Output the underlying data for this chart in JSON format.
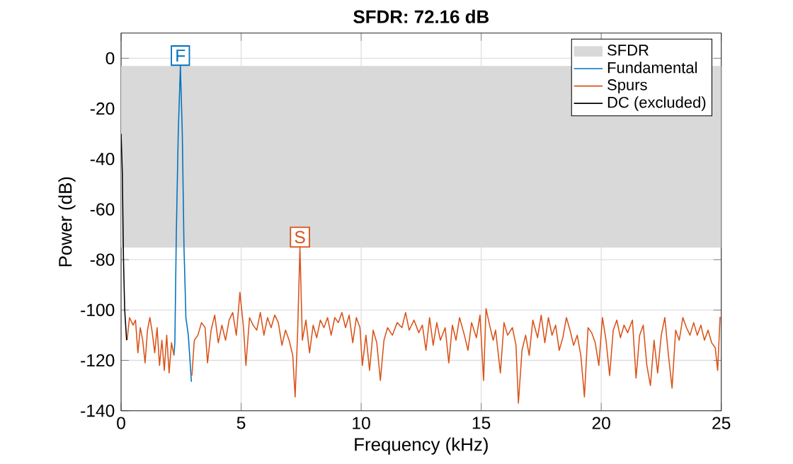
{
  "chart_data": {
    "type": "line",
    "title": "**SFDR:  72.16 dB**",
    "xlabel": "Frequency (kHz)",
    "ylabel": "Power (dB)",
    "xlim": [
      0,
      25
    ],
    "ylim": [
      -140,
      10
    ],
    "xticks": [
      0,
      5,
      10,
      15,
      20,
      25
    ],
    "yticks": [
      -140,
      -120,
      -100,
      -80,
      -60,
      -40,
      -20,
      0
    ],
    "grid": true,
    "legend": "top right",
    "bands": [
      {
        "axis": "y",
        "from": -75.2,
        "to": -3.04,
        "label": "SFDR",
        "color": "#d9d9d9"
      }
    ],
    "annotations": [
      {
        "text": "F",
        "x": 2.47,
        "y": -3.04
      },
      {
        "text": "S",
        "x": 7.45,
        "y": -75.2
      }
    ],
    "series": [
      {
        "name": "Fundamental",
        "color": "#0072bd",
        "x": [
          2.2,
          2.24,
          2.3,
          2.38,
          2.47,
          2.55,
          2.62,
          2.7,
          2.8,
          2.93
        ],
        "values": [
          -118,
          -113,
          -70,
          -30,
          -3.04,
          -30,
          -75,
          -103,
          -110,
          -128.5
        ]
      },
      {
        "name": "Spurs",
        "color": "#d95319",
        "x": [
          0.25,
          0.35,
          0.5,
          0.6,
          0.7,
          0.8,
          0.9,
          1.0,
          1.1,
          1.2,
          1.3,
          1.4,
          1.5,
          1.6,
          1.7,
          1.8,
          1.9,
          2.0,
          2.1,
          2.2,
          2.5,
          2.95,
          3.05,
          3.2,
          3.35,
          3.5,
          3.6,
          3.75,
          3.9,
          4.05,
          4.2,
          4.35,
          4.5,
          4.65,
          4.8,
          4.95,
          5.1,
          5.2,
          5.35,
          5.5,
          5.65,
          5.8,
          5.95,
          6.1,
          6.25,
          6.4,
          6.55,
          6.7,
          6.85,
          7.0,
          7.15,
          7.25,
          7.35,
          7.45,
          7.55,
          7.7,
          7.85,
          8.0,
          8.15,
          8.3,
          8.45,
          8.6,
          8.75,
          8.9,
          9.05,
          9.2,
          9.35,
          9.5,
          9.65,
          9.8,
          9.95,
          10.05,
          10.2,
          10.35,
          10.5,
          10.65,
          10.8,
          10.95,
          11.1,
          11.3,
          11.5,
          11.7,
          11.85,
          12.0,
          12.2,
          12.4,
          12.55,
          12.7,
          12.85,
          13.0,
          13.15,
          13.3,
          13.5,
          13.65,
          13.8,
          13.95,
          14.1,
          14.3,
          14.45,
          14.6,
          14.8,
          14.95,
          15.1,
          15.2,
          15.35,
          15.5,
          15.6,
          15.8,
          15.95,
          16.1,
          16.3,
          16.45,
          16.55,
          16.7,
          16.85,
          17.0,
          17.15,
          17.35,
          17.5,
          17.65,
          17.8,
          17.95,
          18.1,
          18.25,
          18.4,
          18.55,
          18.7,
          18.85,
          19.0,
          19.15,
          19.3,
          19.45,
          19.6,
          19.75,
          19.9,
          20.05,
          20.2,
          20.35,
          20.5,
          20.65,
          20.8,
          20.95,
          21.1,
          21.3,
          21.45,
          21.6,
          21.75,
          21.9,
          22.05,
          22.2,
          22.35,
          22.5,
          22.65,
          22.8,
          22.95,
          23.1,
          23.25,
          23.4,
          23.55,
          23.7,
          23.85,
          24.0,
          24.15,
          24.3,
          24.45,
          24.6,
          24.75,
          24.85,
          24.95
        ],
        "values": [
          -112,
          -103,
          -106,
          -104,
          -117,
          -107,
          -112,
          -121,
          -108,
          -103,
          -109,
          -117,
          -107,
          -122,
          -112,
          -124,
          -110,
          -125,
          -113,
          -118,
          null,
          -126,
          -112,
          -110,
          -105,
          -107,
          -121,
          -108,
          -102,
          -113,
          -106,
          -112,
          -104,
          -101,
          -110,
          -93,
          -107,
          -122,
          -103,
          -106,
          -108,
          -101,
          -110,
          -103,
          -107,
          -102,
          -105,
          -114,
          -108,
          -112,
          -118,
          -134.5,
          -110,
          -75.2,
          -112,
          -104,
          -117,
          -106,
          -111,
          -104,
          -107,
          -103,
          -110,
          -103,
          -105,
          -101,
          -107,
          -102,
          -113,
          -103,
          -107,
          -122,
          -110,
          -124,
          -108,
          -113,
          -128,
          -112,
          -107,
          -110,
          -105,
          -107,
          -101,
          -108,
          -104,
          -109,
          -106,
          -116,
          -103,
          -114,
          -105,
          -112,
          -107,
          -121,
          -106,
          -112,
          -103,
          -110,
          -116,
          -105,
          -111,
          -102,
          -128,
          -99.4,
          -106,
          -112,
          -108,
          -125,
          -105,
          -110,
          -107,
          -114,
          -137,
          -116,
          -110,
          -118,
          -104,
          -111,
          -102,
          -113,
          -103,
          -110,
          -106,
          -116,
          -111,
          -103,
          -108,
          -114,
          -110,
          -118,
          -134.5,
          -107,
          -109,
          -113,
          -122,
          -103,
          -112,
          -126,
          -108,
          -104,
          -111,
          -106,
          -109,
          -104,
          -127,
          -110,
          -106,
          -122,
          -130,
          -112,
          -125,
          -110,
          -103,
          -118,
          -131,
          -108,
          -112,
          -103,
          -107,
          -110,
          -105,
          -110,
          -106,
          -112,
          -108,
          -113,
          -115,
          -124,
          -102.7
        ]
      },
      {
        "name": "DC (excluded)",
        "color": "#000000",
        "x": [
          0,
          0.05,
          0.1,
          0.15,
          0.23
        ],
        "values": [
          -30,
          -45,
          -80,
          -100,
          -112
        ]
      }
    ]
  }
}
